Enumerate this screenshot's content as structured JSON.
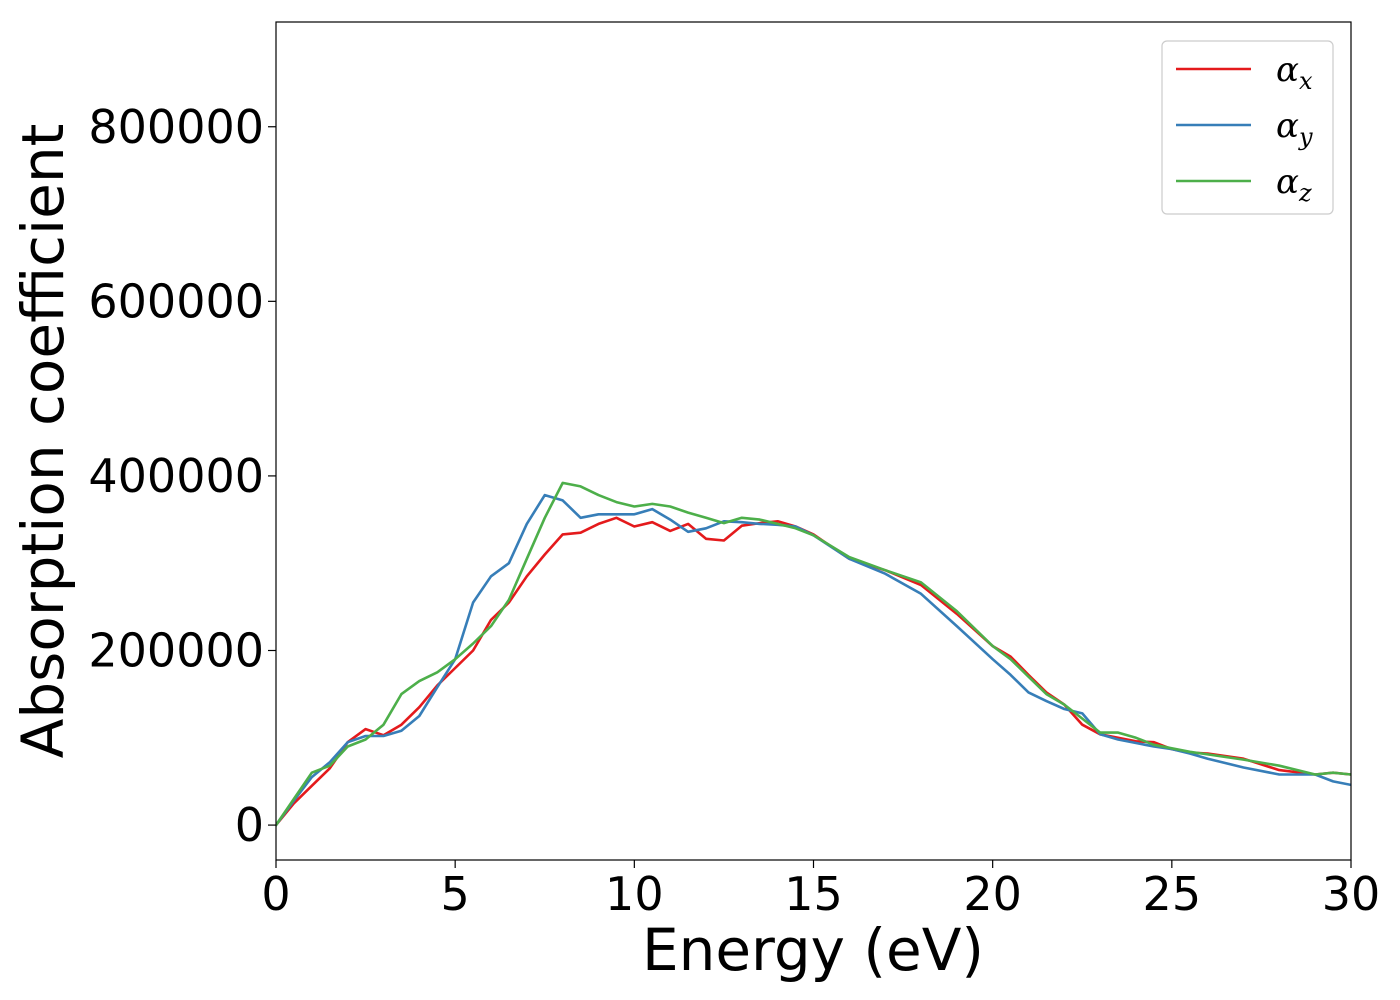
{
  "chart_data": {
    "type": "line",
    "xlabel": "Energy (eV)",
    "ylabel": "Absorption coefficient",
    "xlim": [
      0,
      30
    ],
    "ylim": [
      -40000,
      920000
    ],
    "xticks": [
      0,
      5,
      10,
      15,
      20,
      25,
      30
    ],
    "xtick_labels": [
      "0",
      "5",
      "10",
      "15",
      "20",
      "25",
      "30"
    ],
    "yticks": [
      0,
      200000,
      400000,
      600000,
      800000
    ],
    "ytick_labels": [
      "0",
      "200000",
      "400000",
      "600000",
      "800000"
    ],
    "grid": false,
    "legend_position": "top-right",
    "series": [
      {
        "name": "α_x",
        "legend_main": "α",
        "legend_sub": "x",
        "color": "#e41a1c",
        "x": [
          0,
          0.5,
          1,
          1.5,
          2,
          2.5,
          3,
          3.5,
          4,
          4.5,
          5,
          5.5,
          6,
          6.5,
          7,
          7.5,
          8,
          8.5,
          9,
          9.5,
          10,
          10.5,
          11,
          11.5,
          12,
          12.5,
          13,
          13.5,
          14,
          14.5,
          15,
          16,
          17,
          18,
          19,
          20,
          20.5,
          21,
          21.5,
          22,
          22.5,
          23,
          23.5,
          24,
          24.5,
          25,
          25.5,
          26,
          27,
          28,
          29,
          29.5,
          30
        ],
        "y": [
          0,
          25000,
          45000,
          65000,
          95000,
          110000,
          103000,
          115000,
          135000,
          160000,
          180000,
          200000,
          235000,
          255000,
          285000,
          310000,
          333000,
          335000,
          345000,
          352000,
          342000,
          347000,
          337000,
          345000,
          328000,
          326000,
          343000,
          346000,
          348000,
          342000,
          333000,
          305000,
          292000,
          275000,
          242000,
          205000,
          193000,
          172000,
          152000,
          138000,
          115000,
          104000,
          100000,
          96000,
          95000,
          87000,
          83000,
          82000,
          76000,
          63000,
          58000,
          60000,
          58000
        ]
      },
      {
        "name": "α_y",
        "legend_main": "α",
        "legend_sub": "y",
        "color": "#377eb8",
        "x": [
          0,
          0.5,
          1,
          1.5,
          2,
          2.5,
          3,
          3.5,
          4,
          4.5,
          5,
          5.5,
          6,
          6.5,
          7,
          7.5,
          8,
          8.5,
          9,
          9.5,
          10,
          10.5,
          11,
          11.5,
          12,
          12.5,
          13,
          13.5,
          14,
          14.5,
          15,
          16,
          17,
          18,
          19,
          20,
          20.5,
          21,
          21.5,
          22,
          22.5,
          23,
          23.5,
          24,
          24.5,
          25,
          25.5,
          26,
          27,
          28,
          29,
          29.5,
          30
        ],
        "y": [
          0,
          28000,
          55000,
          72000,
          95000,
          102000,
          102000,
          108000,
          125000,
          158000,
          190000,
          255000,
          285000,
          300000,
          345000,
          378000,
          372000,
          352000,
          356000,
          356000,
          356000,
          362000,
          350000,
          336000,
          340000,
          348000,
          347000,
          345000,
          344000,
          342000,
          332000,
          305000,
          288000,
          265000,
          228000,
          190000,
          172000,
          152000,
          142000,
          133000,
          128000,
          104000,
          98000,
          94000,
          90000,
          87000,
          82000,
          76000,
          66000,
          58000,
          58000,
          50000,
          46000
        ]
      },
      {
        "name": "α_z",
        "legend_main": "α",
        "legend_sub": "z",
        "color": "#4daf4a",
        "x": [
          0,
          0.5,
          1,
          1.5,
          2,
          2.5,
          3,
          3.5,
          4,
          4.5,
          5,
          5.5,
          6,
          6.5,
          7,
          7.5,
          8,
          8.5,
          9,
          9.5,
          10,
          10.5,
          11,
          11.5,
          12,
          12.5,
          13,
          13.5,
          14,
          14.5,
          15,
          16,
          17,
          18,
          19,
          20,
          20.5,
          21,
          21.5,
          22,
          22.5,
          23,
          23.5,
          24,
          24.5,
          25,
          25.5,
          26,
          27,
          28,
          29,
          29.5,
          30
        ],
        "y": [
          0,
          30000,
          60000,
          68000,
          90000,
          98000,
          115000,
          150000,
          165000,
          175000,
          190000,
          208000,
          228000,
          258000,
          305000,
          352000,
          392000,
          388000,
          378000,
          370000,
          365000,
          368000,
          365000,
          358000,
          352000,
          346000,
          352000,
          350000,
          345000,
          340000,
          332000,
          307000,
          292000,
          278000,
          245000,
          205000,
          190000,
          170000,
          150000,
          138000,
          122000,
          106000,
          106000,
          100000,
          92000,
          88000,
          84000,
          81000,
          75000,
          68000,
          58000,
          60000,
          58000
        ]
      }
    ]
  }
}
